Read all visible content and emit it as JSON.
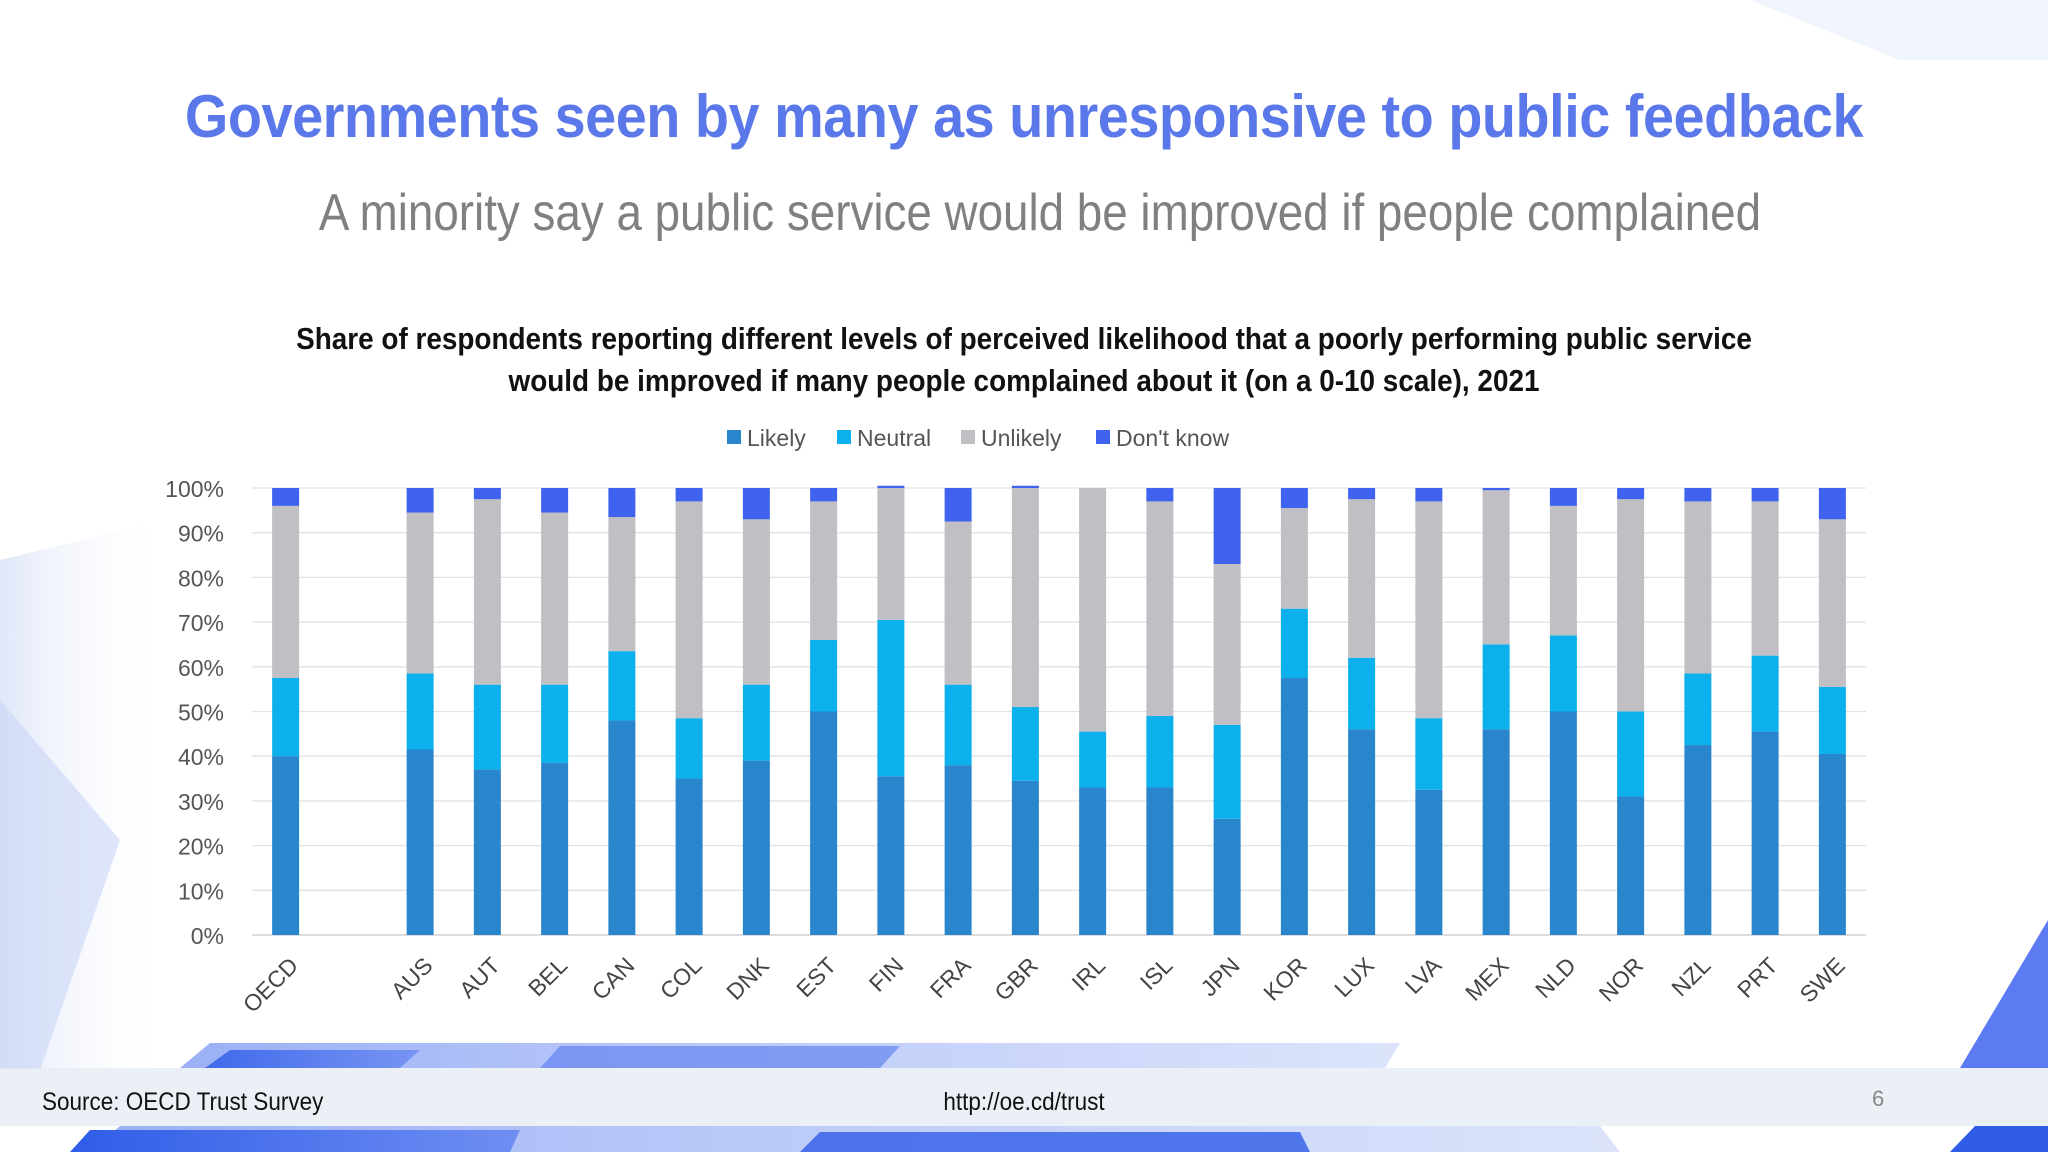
{
  "slide": {
    "headline": "Governments seen by many as unresponsive to public feedback",
    "subhead": "A minority say a public service would be improved if people complained",
    "footer": {
      "source": "Source: OECD Trust Survey",
      "url": "http://oe.cd/trust",
      "page_number": "6"
    }
  },
  "chart_data": {
    "type": "bar",
    "stacked": true,
    "title_lines": [
      "Share of respondents reporting different levels of perceived likelihood that a poorly performing public service",
      "would be improved if many people complained about it (on a 0-10 scale), 2021"
    ],
    "categories": [
      "OECD",
      "",
      "AUS",
      "AUT",
      "BEL",
      "CAN",
      "COL",
      "DNK",
      "EST",
      "FIN",
      "FRA",
      "GBR",
      "IRL",
      "ISL",
      "JPN",
      "KOR",
      "LUX",
      "LVA",
      "MEX",
      "NLD",
      "NOR",
      "NZL",
      "PRT",
      "SWE"
    ],
    "series": [
      {
        "name": "Likely",
        "color": "#2a86cc",
        "values": [
          40,
          null,
          41.5,
          37,
          38.5,
          48,
          35,
          39,
          50,
          35.5,
          38,
          34.5,
          33,
          33,
          26,
          57.5,
          46,
          32.5,
          46,
          50,
          31,
          42.5,
          45.5,
          40.5
        ]
      },
      {
        "name": "Neutral",
        "color": "#0bb0ec",
        "values": [
          17.5,
          null,
          17,
          19,
          17.5,
          15.5,
          13.5,
          17,
          16,
          35,
          18,
          16.5,
          12.5,
          16,
          21,
          15.5,
          16,
          16,
          19,
          17,
          19,
          16,
          17,
          15
        ]
      },
      {
        "name": "Unlikely",
        "color": "#bfbfc4",
        "values": [
          38.5,
          null,
          36,
          41.5,
          38.5,
          30,
          48.5,
          37,
          31,
          29.5,
          36.5,
          49,
          54.5,
          48,
          36,
          22.5,
          35.5,
          48.5,
          34.5,
          29,
          47.5,
          38.5,
          34.5,
          37.5
        ]
      },
      {
        "name": "Don't know",
        "color": "#3f63ee",
        "values": [
          4,
          null,
          5.5,
          2.5,
          5.5,
          6.5,
          3,
          7,
          3,
          0.5,
          7.5,
          0.5,
          0,
          3,
          17,
          4.5,
          2.5,
          3,
          0.5,
          4,
          2.5,
          3,
          3,
          7
        ]
      }
    ],
    "y_ticks": [
      "0%",
      "10%",
      "20%",
      "30%",
      "40%",
      "50%",
      "60%",
      "70%",
      "80%",
      "90%",
      "100%"
    ],
    "ylim": [
      0,
      100
    ],
    "grid": true,
    "legend_position": "top-center"
  }
}
